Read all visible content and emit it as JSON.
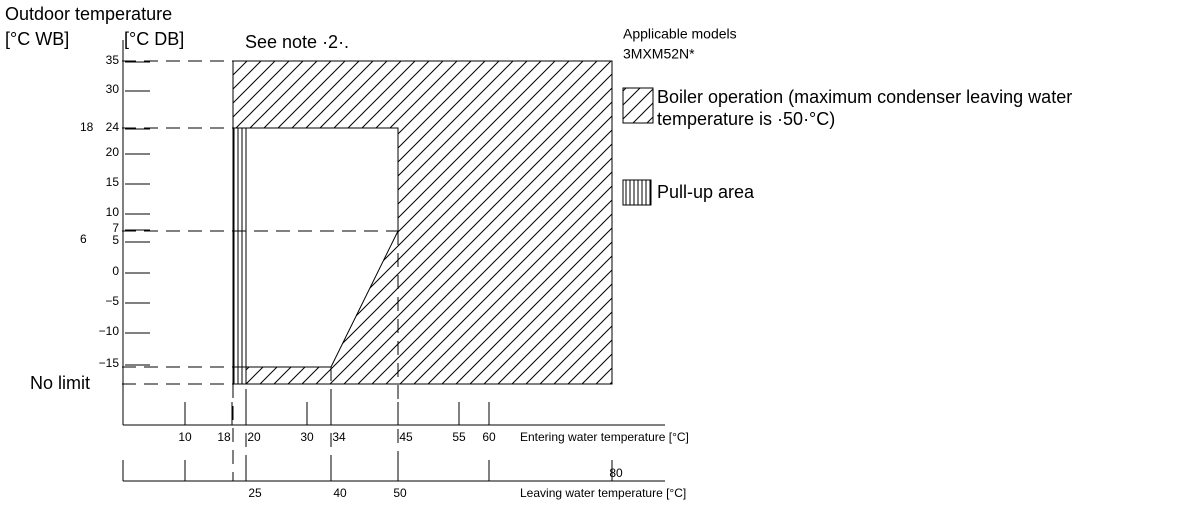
{
  "axis_titles": {
    "outdoor": "Outdoor temperature",
    "wb": "[°C WB]",
    "db": "[°C DB]",
    "entering": "Entering water temperature [°C]",
    "leaving": "Leaving water temperature [°C]"
  },
  "note": "See note ·2·.",
  "db_ticks": [
    "35",
    "30",
    "24",
    "20",
    "15",
    "10",
    "7",
    "5",
    "0",
    "−5",
    "−10",
    "−15"
  ],
  "wb_ticks": [
    "18",
    "6"
  ],
  "no_limit": "No limit",
  "entering_ticks": [
    "10",
    "18",
    "20",
    "30",
    "34",
    "45",
    "55",
    "60"
  ],
  "leaving_ticks": [
    "25",
    "40",
    "50",
    "80"
  ],
  "legend": {
    "title": "Applicable models",
    "model": "3MXM52N*",
    "boiler": [
      "Boiler operation (maximum condenser leaving water",
      "temperature is ·50·°C)"
    ],
    "pullup": "Pull-up area"
  }
}
